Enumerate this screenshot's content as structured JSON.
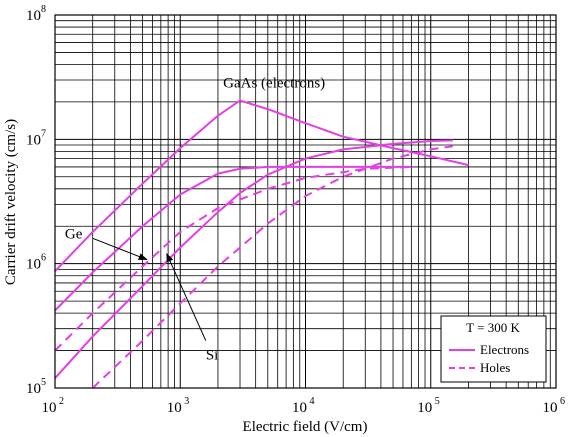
{
  "chart_data": {
    "type": "line",
    "xscale": "log",
    "yscale": "log",
    "xlim": [
      100,
      1000000
    ],
    "ylim": [
      100000,
      100000000
    ],
    "xlabel": "Electric field (V/cm)",
    "ylabel": "Carrier drift velocity (cm/s)",
    "grid": true,
    "x_ticks": [
      {
        "value": 100,
        "base": "10",
        "exp": "2"
      },
      {
        "value": 1000,
        "base": "10",
        "exp": "3"
      },
      {
        "value": 10000,
        "base": "10",
        "exp": "4"
      },
      {
        "value": 100000,
        "base": "10",
        "exp": "5"
      },
      {
        "value": 1000000,
        "base": "10",
        "exp": "6"
      }
    ],
    "y_ticks": [
      {
        "value": 100000,
        "base": "10",
        "exp": "5"
      },
      {
        "value": 1000000,
        "base": "10",
        "exp": "6"
      },
      {
        "value": 10000000,
        "base": "10",
        "exp": "7"
      },
      {
        "value": 100000000,
        "base": "10",
        "exp": "8"
      }
    ],
    "legend": {
      "title": "T = 300 K",
      "placement": "bottom-right",
      "entries": [
        {
          "label": "Electrons",
          "style": "solid"
        },
        {
          "label": "Holes",
          "style": "dashed"
        }
      ]
    },
    "line_color": "#e43ee4",
    "series": [
      {
        "material": "GaAs",
        "carrier": "electrons",
        "style": "solid",
        "points": [
          [
            100,
            870000
          ],
          [
            200,
            1800000
          ],
          [
            500,
            4400000
          ],
          [
            1000,
            8500000
          ],
          [
            2000,
            15500000
          ],
          [
            3000,
            20500000
          ],
          [
            5000,
            17500000
          ],
          [
            10000,
            13500000
          ],
          [
            20000,
            10500000
          ],
          [
            50000,
            8500000
          ],
          [
            100000,
            7300000
          ],
          [
            200000,
            6200000
          ]
        ]
      },
      {
        "material": "Ge",
        "carrier": "electrons",
        "style": "solid",
        "points": [
          [
            100,
            420000
          ],
          [
            200,
            850000
          ],
          [
            500,
            2000000
          ],
          [
            1000,
            3600000
          ],
          [
            2000,
            5300000
          ],
          [
            3000,
            5800000
          ],
          [
            5000,
            6000000
          ],
          [
            10000,
            6000000
          ],
          [
            30000,
            6000000
          ],
          [
            70000,
            6000000
          ]
        ]
      },
      {
        "material": "Ge",
        "carrier": "holes",
        "style": "dashed",
        "points": [
          [
            100,
            200000
          ],
          [
            200,
            400000
          ],
          [
            500,
            950000
          ],
          [
            1000,
            1800000
          ],
          [
            2000,
            2800000
          ],
          [
            5000,
            4000000
          ],
          [
            10000,
            4900000
          ],
          [
            30000,
            5800000
          ],
          [
            70000,
            6000000
          ]
        ]
      },
      {
        "material": "Si",
        "carrier": "electrons",
        "style": "solid",
        "points": [
          [
            100,
            120000
          ],
          [
            200,
            260000
          ],
          [
            500,
            660000
          ],
          [
            1000,
            1350000
          ],
          [
            2000,
            2600000
          ],
          [
            3000,
            3700000
          ],
          [
            5000,
            5200000
          ],
          [
            10000,
            7000000
          ],
          [
            20000,
            8300000
          ],
          [
            50000,
            9200000
          ],
          [
            100000,
            9700000
          ],
          [
            150000,
            9800000
          ]
        ]
      },
      {
        "material": "Si",
        "carrier": "holes",
        "style": "dashed",
        "points": [
          [
            200,
            100000
          ],
          [
            500,
            240000
          ],
          [
            1000,
            480000
          ],
          [
            2000,
            950000
          ],
          [
            5000,
            2100000
          ],
          [
            10000,
            3500000
          ],
          [
            20000,
            5000000
          ],
          [
            50000,
            7000000
          ],
          [
            100000,
            8300000
          ],
          [
            150000,
            8800000
          ]
        ]
      }
    ],
    "annotations": [
      {
        "text": "GaAs (electrons)",
        "x": 2200,
        "y": 26000000,
        "pointer": null
      },
      {
        "text": "Ge",
        "x": 120,
        "y": 1600000,
        "pointer": [
          [
            540,
            1080000
          ],
          [
            200,
            1600000
          ]
        ]
      },
      {
        "text": "Si",
        "x": 1600,
        "y": 170000,
        "pointer": [
          [
            780,
            1200000
          ],
          [
            1600,
            240000
          ]
        ]
      }
    ]
  }
}
